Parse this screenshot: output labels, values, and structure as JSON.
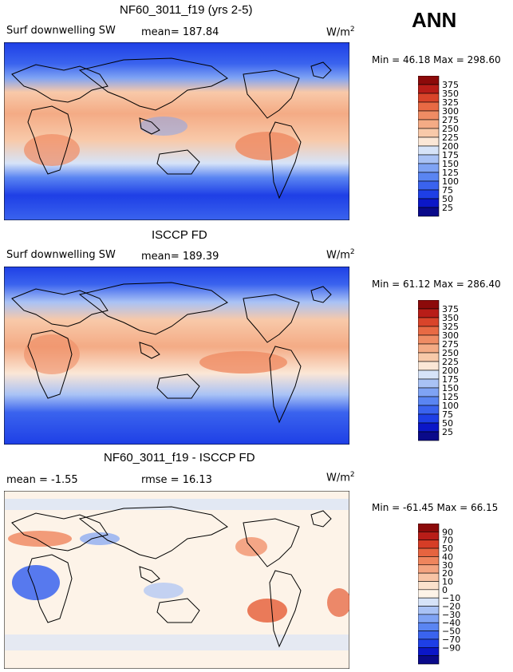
{
  "season": "ANN",
  "colors": {
    "base_scale": [
      "#0a0a8a",
      "#0b17c8",
      "#1e3fe6",
      "#3a63ee",
      "#5a85f2",
      "#7fa3f4",
      "#a9c2f5",
      "#d6e3f8",
      "#fbe7d6",
      "#f8c9a9",
      "#f4ab85",
      "#ef8c64",
      "#e86a44",
      "#d9442a",
      "#b81d18",
      "#8c0a0a"
    ],
    "diff_scale": [
      "#0a0a8a",
      "#0b17c8",
      "#1e3fe6",
      "#3a63ee",
      "#5a85f2",
      "#7fa3f4",
      "#a9c2f5",
      "#d6e3f8",
      "#fdf3e8",
      "#fbe1cc",
      "#f8c4a5",
      "#f4a480",
      "#ef855d",
      "#e6643f",
      "#d63d26",
      "#b81d18",
      "#8c0a0a"
    ]
  },
  "panels": [
    {
      "title": "NF60_3011_f19 (yrs 2-5)",
      "variable": "Surf downwelling SW",
      "stat1": "mean=  187.84",
      "stat2": "",
      "units": "W/m",
      "units_exp": "2",
      "minmax": "Min =   46.18  Max =  298.60"
    },
    {
      "title": "ISCCP FD",
      "variable": "Surf downwelling SW",
      "stat1": "mean=  189.39",
      "stat2": "",
      "units": "W/m",
      "units_exp": "2",
      "minmax": "Min =   61.12  Max =  286.40"
    },
    {
      "title": "NF60_3011_f19 - ISCCP FD",
      "variable": "",
      "stat1": "mean =   -1.55",
      "stat2": "rmse =   16.13",
      "units": "W/m",
      "units_exp": "2",
      "minmax": "Min = -61.45  Max =   66.15"
    }
  ],
  "chart_data": [
    {
      "type": "heatmap",
      "title": "NF60_3011_f19 (yrs 2-5)",
      "variable": "Surf downwelling SW",
      "units": "W/m2",
      "mean": 187.84,
      "min": 46.18,
      "max": 298.6,
      "colorbar_levels": [
        "375",
        "350",
        "325",
        "300",
        "275",
        "250",
        "225",
        "200",
        "175",
        "150",
        "125",
        "100",
        "75",
        "50",
        "25"
      ]
    },
    {
      "type": "heatmap",
      "title": "ISCCP FD",
      "variable": "Surf downwelling SW",
      "units": "W/m2",
      "mean": 189.39,
      "min": 61.12,
      "max": 286.4,
      "colorbar_levels": [
        "375",
        "350",
        "325",
        "300",
        "275",
        "250",
        "225",
        "200",
        "175",
        "150",
        "125",
        "100",
        "75",
        "50",
        "25"
      ]
    },
    {
      "type": "heatmap",
      "title": "NF60_3011_f19 - ISCCP FD",
      "units": "W/m2",
      "mean": -1.55,
      "rmse": 16.13,
      "min": -61.45,
      "max": 66.15,
      "colorbar_levels": [
        "90",
        "70",
        "50",
        "40",
        "30",
        "20",
        "10",
        "0",
        "−10",
        "−20",
        "−30",
        "−40",
        "−50",
        "−70",
        "−90"
      ]
    }
  ]
}
